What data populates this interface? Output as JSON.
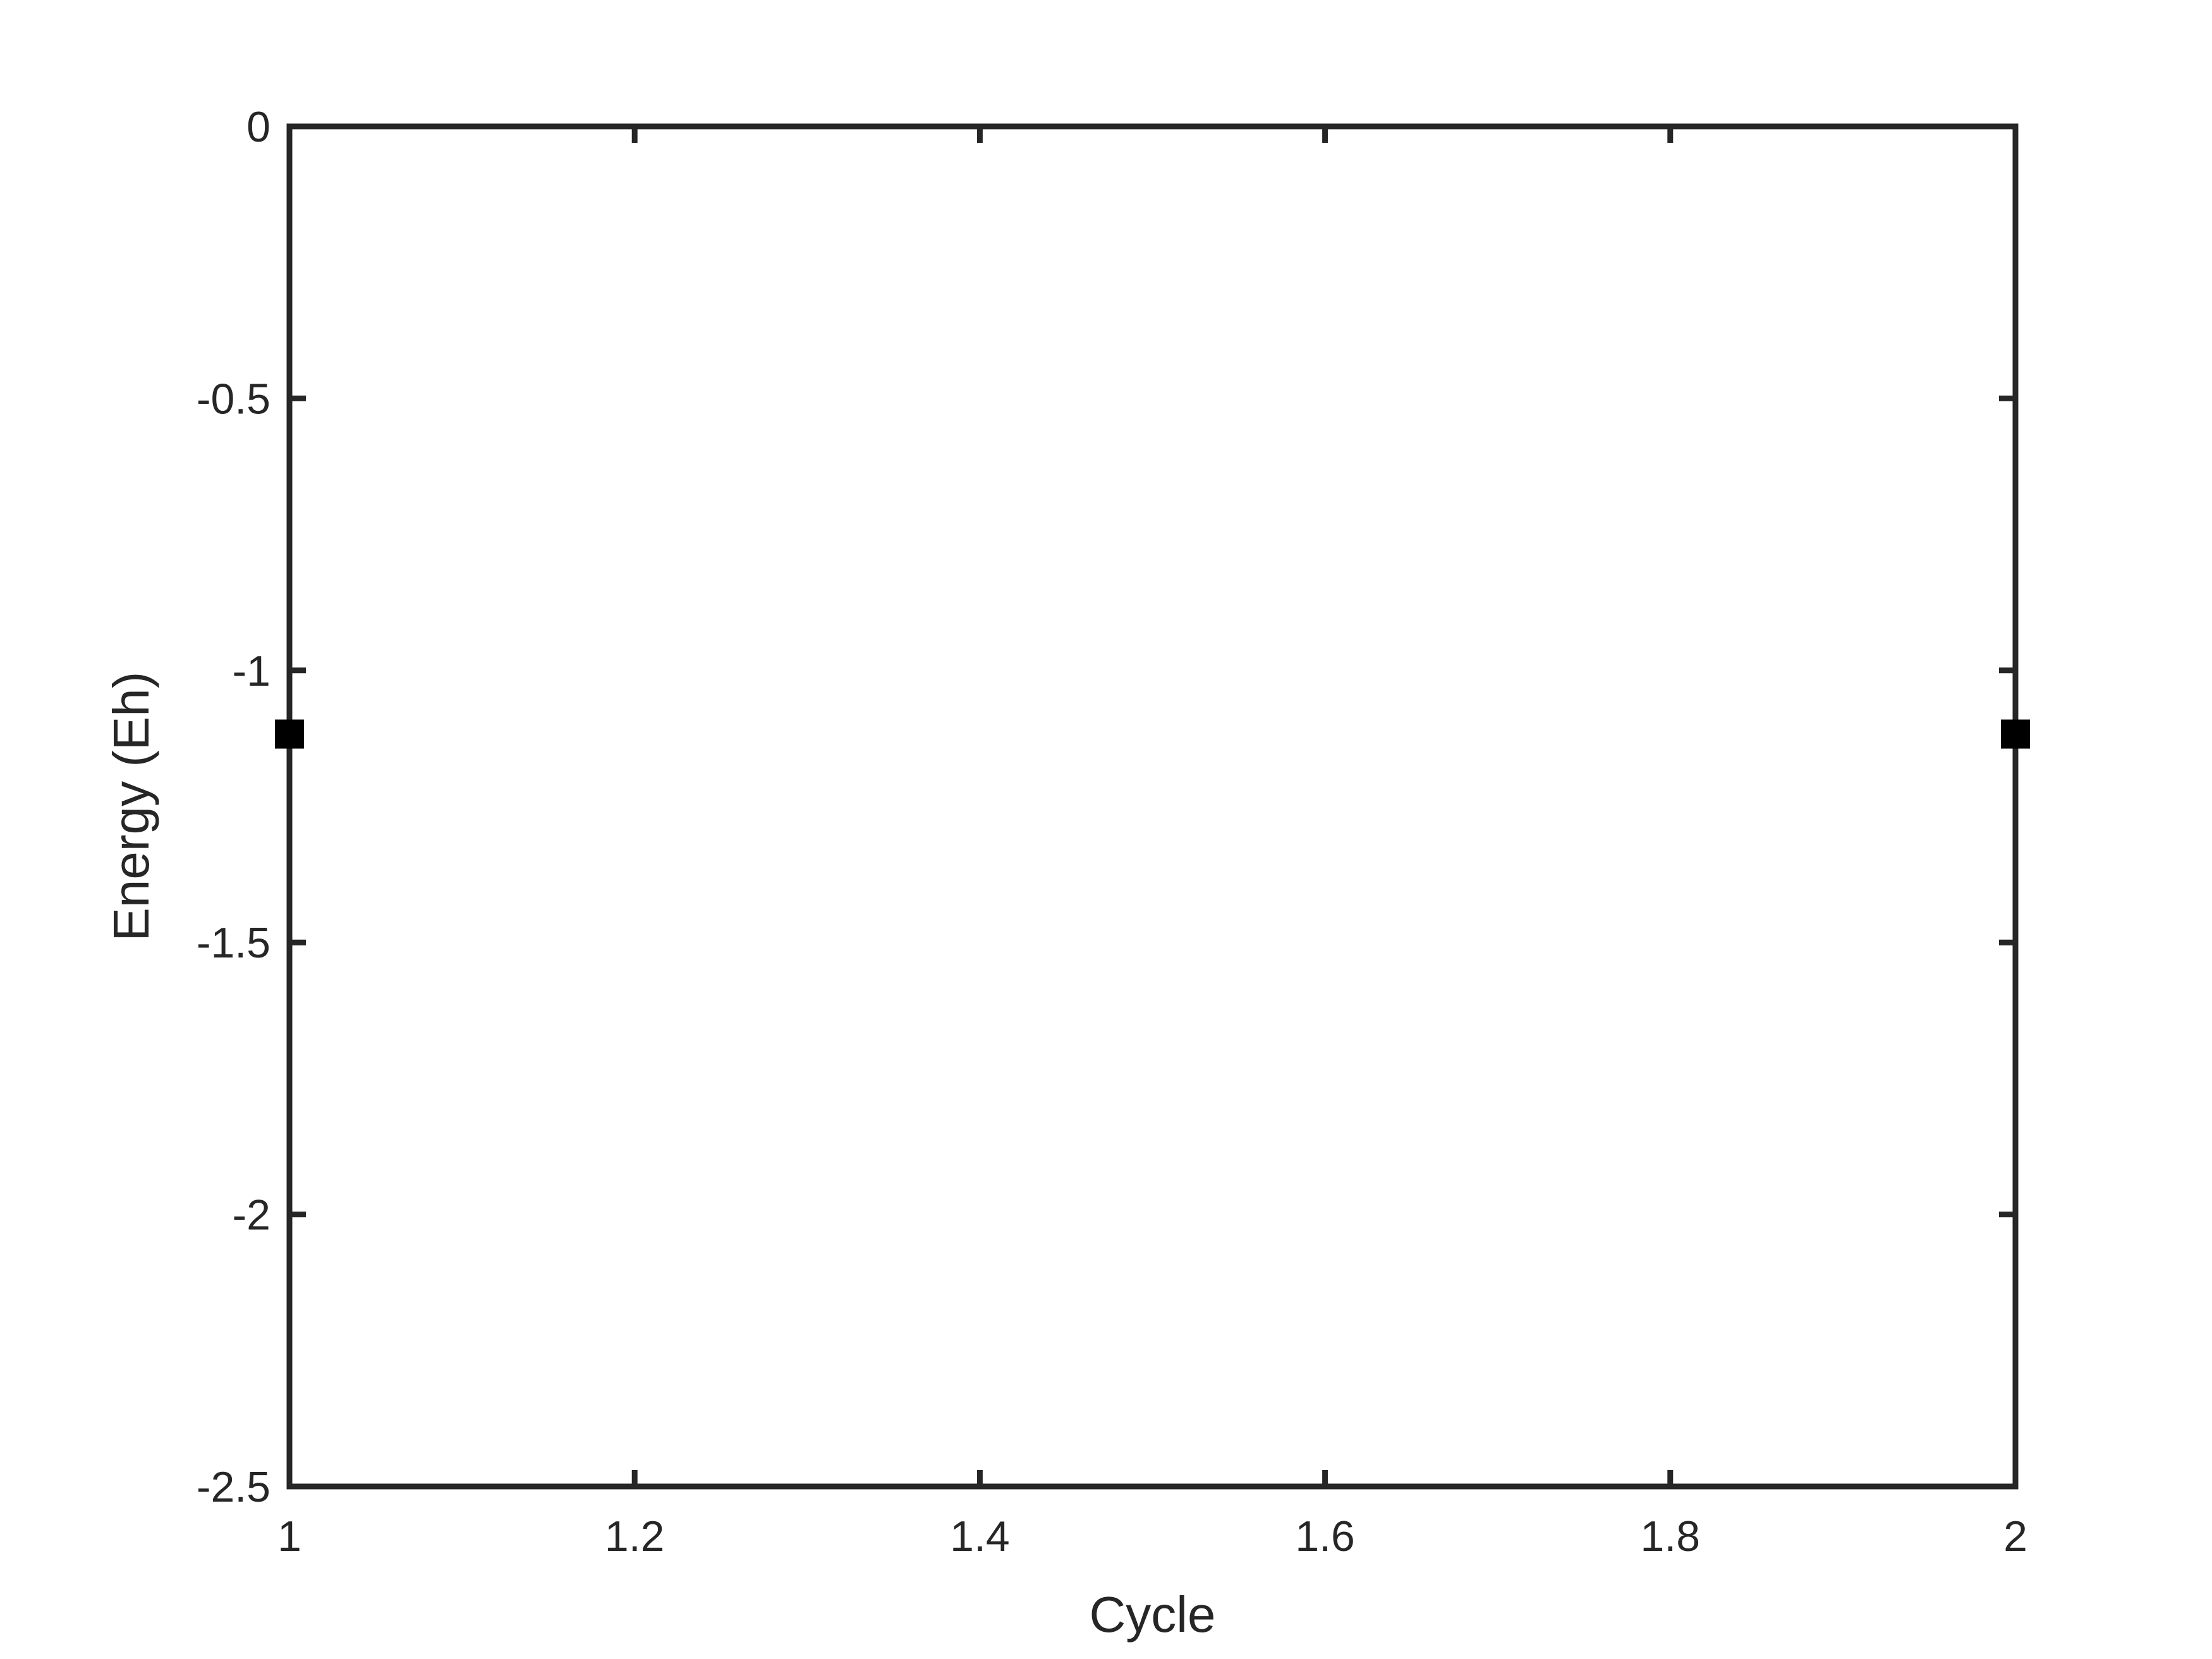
{
  "chart_data": {
    "type": "scatter",
    "title": "",
    "xlabel": "Cycle",
    "ylabel": "Energy (Eh)",
    "xlim": [
      1,
      2
    ],
    "ylim": [
      -2.5,
      0
    ],
    "x_ticks": [
      1,
      1.2,
      1.4,
      1.6,
      1.8,
      2
    ],
    "x_tick_labels": [
      "1",
      "1.2",
      "1.4",
      "1.6",
      "1.8",
      "2"
    ],
    "y_ticks": [
      0,
      -0.5,
      -1,
      -1.5,
      -2,
      -2.5
    ],
    "y_tick_labels": [
      "0",
      "-0.5",
      "-1",
      "-1.5",
      "-2",
      "-2.5"
    ],
    "grid": false,
    "box": true,
    "series": [
      {
        "x": [
          1,
          2
        ],
        "y": [
          -1.117,
          -1.117
        ],
        "color": "#000000",
        "marker": "square"
      }
    ]
  }
}
